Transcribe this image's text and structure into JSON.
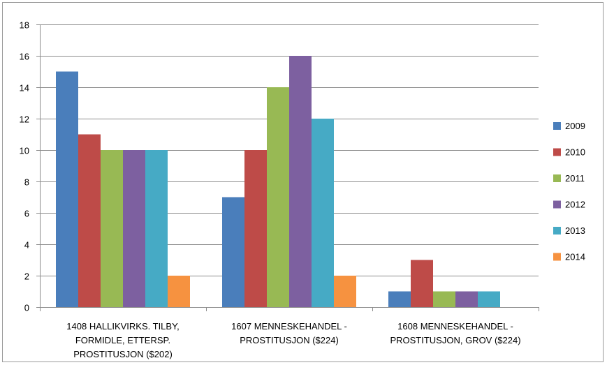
{
  "chart_data": {
    "type": "bar",
    "title": "",
    "xlabel": "",
    "ylabel": "",
    "ylim": [
      0,
      18
    ],
    "yticks": [
      0,
      2,
      4,
      6,
      8,
      10,
      12,
      14,
      16,
      18
    ],
    "grid": true,
    "legend_position": "right",
    "categories": [
      [
        "1408 HALLIKVIRKS. TILBY,",
        "FORMIDLE, ETTERSP.",
        "PROSTITUSJON ($202)"
      ],
      [
        "1607 MENNESKEHANDEL -",
        "PROSTITUSJON ($224)"
      ],
      [
        "1608 MENNESKEHANDEL -",
        "PROSTITUSJON, GROV ($224)"
      ]
    ],
    "series": [
      {
        "name": "2009",
        "color": "#4a7ebb",
        "values": [
          15,
          7,
          1
        ]
      },
      {
        "name": "2010",
        "color": "#be4b48",
        "values": [
          11,
          10,
          3
        ]
      },
      {
        "name": "2011",
        "color": "#98b954",
        "values": [
          10,
          14,
          1
        ]
      },
      {
        "name": "2012",
        "color": "#7d60a0",
        "values": [
          10,
          16,
          1
        ]
      },
      {
        "name": "2013",
        "color": "#46aac5",
        "values": [
          10,
          12,
          1
        ]
      },
      {
        "name": "2014",
        "color": "#f69240",
        "values": [
          2,
          2,
          null
        ]
      }
    ]
  }
}
